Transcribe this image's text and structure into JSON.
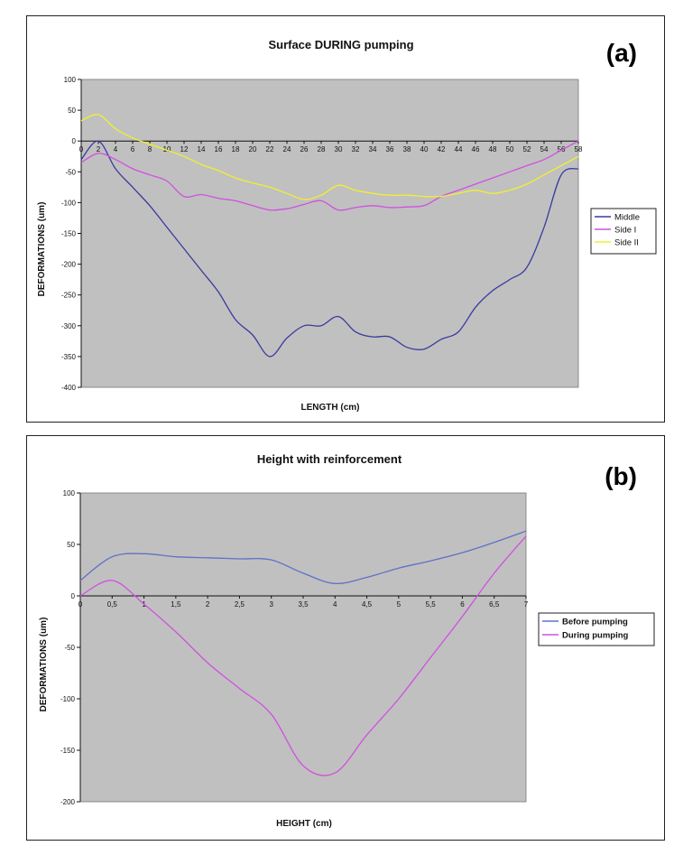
{
  "chart_data": [
    {
      "type": "line",
      "panel_label": "(a)",
      "title": "Surface DURING pumping",
      "xlabel": "LENGTH (cm)",
      "ylabel": "DEFORMATIONS (um)",
      "xlim": [
        0,
        58
      ],
      "ylim": [
        -400,
        100
      ],
      "yticks": [
        100,
        50,
        0,
        -50,
        -100,
        -150,
        -200,
        -250,
        -300,
        -350,
        -400
      ],
      "xticks": [
        0,
        2,
        4,
        6,
        8,
        10,
        12,
        14,
        16,
        18,
        20,
        22,
        24,
        26,
        28,
        30,
        32,
        34,
        36,
        38,
        40,
        42,
        44,
        46,
        48,
        50,
        52,
        54,
        56,
        58
      ],
      "grid": false,
      "legend_position": "right",
      "x": [
        0,
        2,
        4,
        6,
        8,
        10,
        12,
        14,
        16,
        18,
        20,
        22,
        24,
        26,
        28,
        30,
        32,
        34,
        36,
        38,
        40,
        42,
        44,
        46,
        48,
        50,
        52,
        54,
        56,
        58
      ],
      "series": [
        {
          "name": "Middle",
          "color": "#3a3aa0",
          "values": [
            -30,
            0,
            -45,
            -75,
            -105,
            -140,
            -175,
            -210,
            -245,
            -290,
            -315,
            -350,
            -320,
            -300,
            -300,
            -285,
            -310,
            -318,
            -318,
            -335,
            -338,
            -322,
            -310,
            -270,
            -243,
            -225,
            -205,
            -140,
            -55,
            -45
          ]
        },
        {
          "name": "Side I",
          "color": "#d050e0",
          "values": [
            -35,
            -20,
            -30,
            -45,
            -55,
            -65,
            -90,
            -87,
            -93,
            -97,
            -105,
            -112,
            -110,
            -103,
            -97,
            -112,
            -108,
            -105,
            -108,
            -107,
            -105,
            -90,
            -80,
            -70,
            -60,
            -50,
            -40,
            -30,
            -15,
            0
          ]
        },
        {
          "name": "Side II",
          "color": "#f0f030",
          "values": [
            33,
            43,
            20,
            5,
            -5,
            -15,
            -25,
            -38,
            -48,
            -60,
            -68,
            -75,
            -85,
            -95,
            -88,
            -72,
            -80,
            -85,
            -88,
            -88,
            -90,
            -90,
            -85,
            -80,
            -85,
            -80,
            -70,
            -55,
            -40,
            -25
          ]
        }
      ]
    },
    {
      "type": "line",
      "panel_label": "(b)",
      "title": "Height with reinforcement",
      "xlabel": "HEIGHT (cm)",
      "ylabel": "DEFORMATIONS (um)",
      "xlim": [
        0,
        7
      ],
      "ylim": [
        -200,
        100
      ],
      "yticks": [
        100,
        50,
        0,
        -50,
        -100,
        -150,
        -200
      ],
      "xticks": [
        "0",
        "0,5",
        "1",
        "1,5",
        "2",
        "2,5",
        "3",
        "3,5",
        "4",
        "4,5",
        "5",
        "5,5",
        "6",
        "6,5",
        "7"
      ],
      "grid": false,
      "legend_position": "right",
      "x": [
        0,
        0.5,
        1,
        1.5,
        2,
        2.5,
        3,
        3.5,
        4,
        4.5,
        5,
        5.5,
        6,
        6.5,
        7
      ],
      "series": [
        {
          "name": "Before pumping",
          "color": "#6070c8",
          "values": [
            15,
            38,
            41,
            38,
            37,
            36,
            35,
            22,
            12,
            18,
            27,
            34,
            42,
            52,
            63
          ]
        },
        {
          "name": "During pumping",
          "color": "#d050e0",
          "values": [
            0,
            15,
            -8,
            -35,
            -65,
            -90,
            -115,
            -165,
            -172,
            -135,
            -100,
            -60,
            -20,
            22,
            58
          ]
        }
      ]
    }
  ]
}
